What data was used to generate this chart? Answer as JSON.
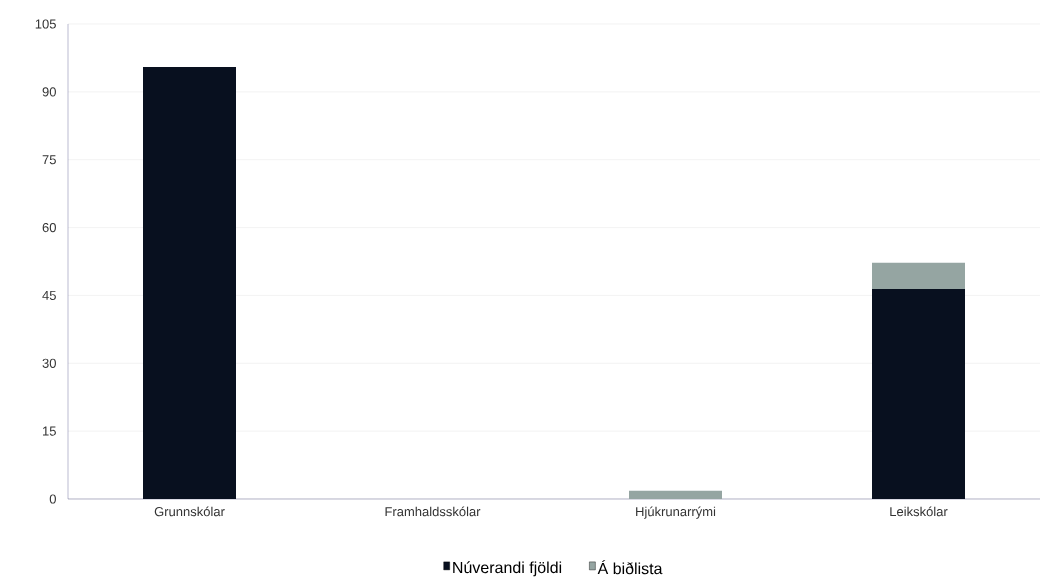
{
  "chart_data": {
    "type": "bar",
    "stacked": true,
    "categories": [
      "Grunnskólar",
      "Framhaldsskólar",
      "Hjúkrunarrými",
      "Leikskólar"
    ],
    "series": [
      {
        "name": "Núverandi fjöldi",
        "color": "#08101f",
        "values": [
          95.5,
          0,
          0,
          46.4
        ]
      },
      {
        "name": "Á biðlista",
        "color": "#95a5a2",
        "values": [
          0,
          0,
          1.8,
          5.8
        ]
      }
    ],
    "ylim": [
      0,
      105
    ],
    "yticks": [
      0,
      15,
      30,
      45,
      60,
      75,
      90,
      105
    ],
    "grid": "y",
    "legend": "bottom"
  }
}
